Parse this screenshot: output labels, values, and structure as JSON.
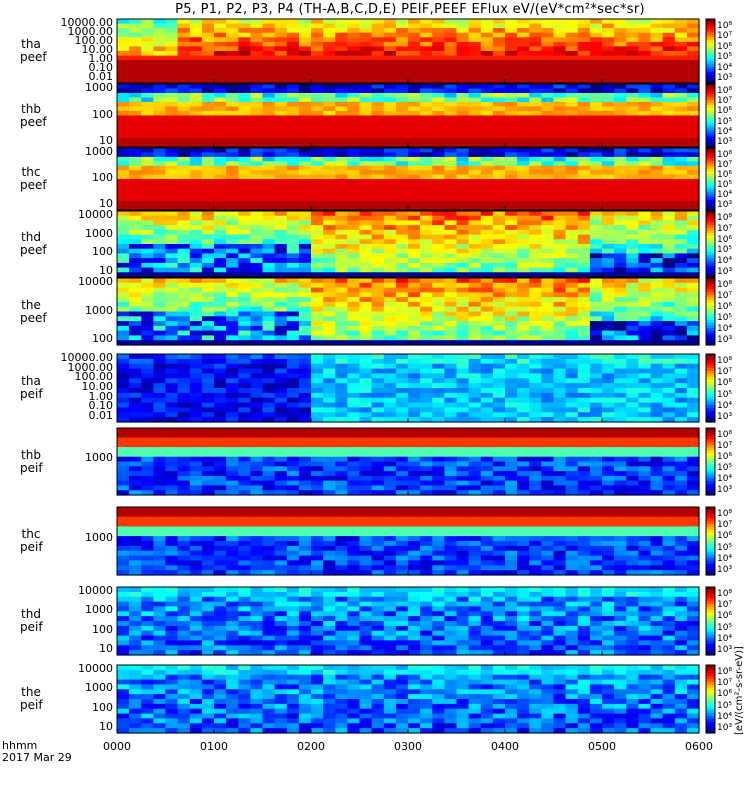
{
  "title": "P5, P1, P2, P3, P4 (TH-A,B,C,D,E) PEIF,PEEF EFlux eV/(eV*cm²*sec*sr)",
  "chart_data": {
    "type": "heatmap",
    "x_label_top": "hhmm",
    "x_label_bottom": "2017 Mar 29",
    "x_ticks": [
      "0000",
      "0100",
      "0200",
      "0300",
      "0400",
      "0500",
      "0600"
    ],
    "colorbar_units": "[eV/(cm²-s-sr-eV)]",
    "colorbar_units_note": "Eflux",
    "panels": [
      {
        "probe": "tha",
        "product": "peef",
        "y_ticks": [
          "10000.00",
          "1000.00",
          "100.00",
          "10.00",
          "1.00",
          "0.10",
          "0.01"
        ],
        "cbar_ticks": [
          "10⁸",
          "10⁷",
          "10⁶",
          "10⁵",
          "10⁴",
          "10³"
        ]
      },
      {
        "probe": "thb",
        "product": "peef",
        "y_ticks": [
          "1000",
          "100",
          "10"
        ],
        "cbar_ticks": [
          "10⁸",
          "10⁷",
          "10⁶",
          "10⁵",
          "10⁴",
          "10³"
        ]
      },
      {
        "probe": "thc",
        "product": "peef",
        "y_ticks": [
          "1000",
          "100",
          "10"
        ],
        "cbar_ticks": [
          "10⁸",
          "10⁷",
          "10⁶",
          "10⁵",
          "10⁴",
          "10³"
        ]
      },
      {
        "probe": "thd",
        "product": "peef",
        "y_ticks": [
          "10000",
          "1000",
          "100",
          "10"
        ],
        "cbar_ticks": [
          "10⁸",
          "10⁷",
          "10⁶",
          "10⁵",
          "10⁴",
          "10³"
        ]
      },
      {
        "probe": "the",
        "product": "peef",
        "y_ticks": [
          "10000",
          "1000",
          "100"
        ],
        "cbar_ticks": [
          "10⁸",
          "10⁷",
          "10⁶",
          "10⁵",
          "10⁴",
          "10³"
        ]
      },
      {
        "probe": "tha",
        "product": "peif",
        "y_ticks": [
          "10000.00",
          "1000.00",
          "100.00",
          "10.00",
          "1.00",
          "0.10",
          "0.01"
        ],
        "cbar_ticks": [
          "10⁸",
          "10⁷",
          "10⁶",
          "10⁵",
          "10⁴",
          "10³"
        ]
      },
      {
        "probe": "thb",
        "product": "peif",
        "y_ticks": [
          "1000"
        ],
        "cbar_ticks": [
          "10⁸",
          "10⁷",
          "10⁶",
          "10⁵",
          "10⁴",
          "10³"
        ]
      },
      {
        "probe": "thc",
        "product": "peif",
        "y_ticks": [
          "1000"
        ],
        "cbar_ticks": [
          "10⁸",
          "10⁷",
          "10⁶",
          "10⁵",
          "10⁴",
          "10³"
        ]
      },
      {
        "probe": "thd",
        "product": "peif",
        "y_ticks": [
          "10000",
          "1000",
          "100",
          "10"
        ],
        "cbar_ticks": [
          "10⁸",
          "10⁷",
          "10⁶",
          "10⁵",
          "10⁴",
          "10³"
        ]
      },
      {
        "probe": "the",
        "product": "peif",
        "y_ticks": [
          "10000",
          "1000",
          "100",
          "10"
        ],
        "cbar_ticks": [
          "10⁸",
          "10⁷",
          "10⁶",
          "10⁵",
          "10⁴",
          "10³"
        ]
      }
    ]
  }
}
